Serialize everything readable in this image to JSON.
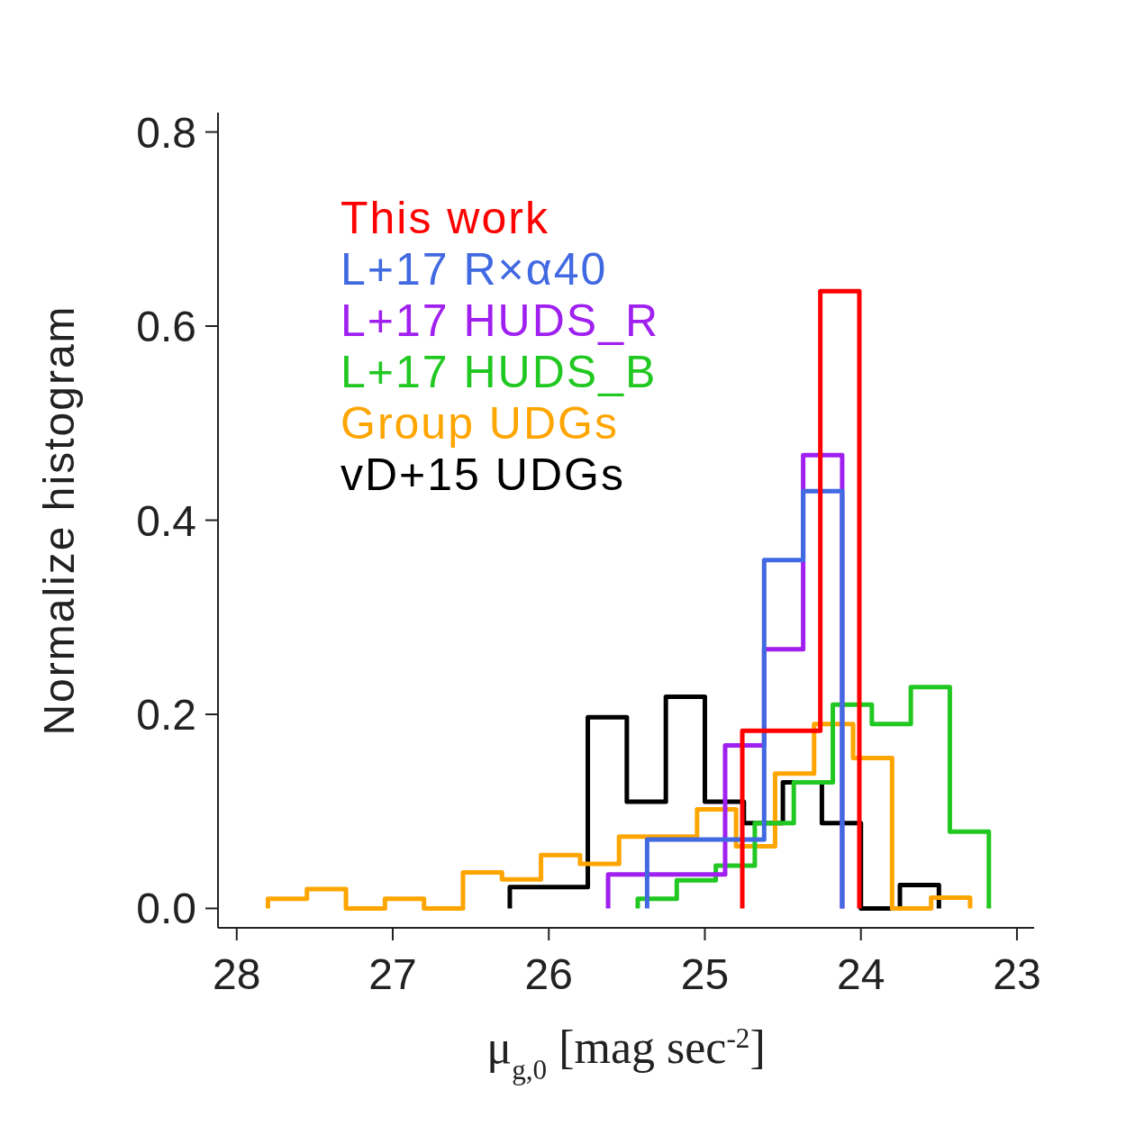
{
  "chart_data": {
    "type": "step",
    "xlabel": "μ$_{g,0}$ [mag sec$^{-2}$]",
    "ylabel": "Normalize histogram",
    "xlim": [
      28.12,
      22.89
    ],
    "xticks": [
      28,
      27,
      26,
      25,
      24,
      23
    ],
    "ylim": [
      -0.02,
      0.82
    ],
    "yticks": [
      {
        "value": 0,
        "label": "0.0"
      },
      {
        "value": 0.2,
        "label": "0.2"
      },
      {
        "value": 0.4,
        "label": "0.4"
      },
      {
        "value": 0.6,
        "label": "0.6"
      },
      {
        "value": 0.8,
        "label": "0.8"
      }
    ],
    "grid": false,
    "marker": "none",
    "series": [
      {
        "name": "This work",
        "color": "#ff0000",
        "x": [
          24.76,
          24.76,
          24.51,
          24.26,
          24.01
        ],
        "values": [
          0,
          0.183,
          0.183,
          0.636,
          0
        ]
      },
      {
        "name": "L+17 R×α40",
        "color": "#4169e1",
        "x": [
          25.37,
          25.37,
          25.12,
          24.87,
          24.62,
          24.37,
          24.12
        ],
        "values": [
          0,
          0.071,
          0.071,
          0.071,
          0.359,
          0.43,
          0
        ]
      },
      {
        "name": "L+17 HUDS_R",
        "color": "#a020f0",
        "x": [
          25.62,
          25.62,
          25.37,
          25.12,
          24.87,
          24.62,
          24.37,
          24.12
        ],
        "values": [
          0,
          0.035,
          0.035,
          0.035,
          0.168,
          0.267,
          0.467,
          0
        ]
      },
      {
        "name": "L+17 HUDS_B",
        "color": "#22c822",
        "x": [
          25.43,
          25.43,
          25.18,
          24.93,
          24.68,
          24.43,
          24.18,
          23.93,
          23.68,
          23.43,
          23.18
        ],
        "values": [
          0,
          0.01,
          0.029,
          0.044,
          0.088,
          0.13,
          0.21,
          0.19,
          0.228,
          0.079,
          0
        ]
      },
      {
        "name": "Group UDGs",
        "color": "#ffa500",
        "x": [
          27.8,
          27.8,
          27.55,
          27.3,
          27.05,
          26.8,
          26.55,
          26.3,
          26.05,
          25.8,
          25.55,
          25.3,
          25.05,
          24.8,
          24.55,
          24.3,
          24.05,
          23.8,
          23.55,
          23.3
        ],
        "values": [
          0,
          0.01,
          0.02,
          0,
          0.01,
          0,
          0.037,
          0.03,
          0.055,
          0.046,
          0.074,
          0.074,
          0.102,
          0.064,
          0.139,
          0.19,
          0.155,
          0,
          0.011,
          0
        ]
      },
      {
        "name": "vD+15 UDGs",
        "color": "#000000",
        "x": [
          26.25,
          26.25,
          26.0,
          25.75,
          25.5,
          25.25,
          25.0,
          24.75,
          24.5,
          24.25,
          24.0,
          23.75,
          23.5
        ],
        "values": [
          0,
          0.022,
          0.022,
          0.197,
          0.11,
          0.218,
          0.11,
          0.088,
          0.13,
          0.088,
          0,
          0.024,
          0
        ]
      }
    ]
  }
}
